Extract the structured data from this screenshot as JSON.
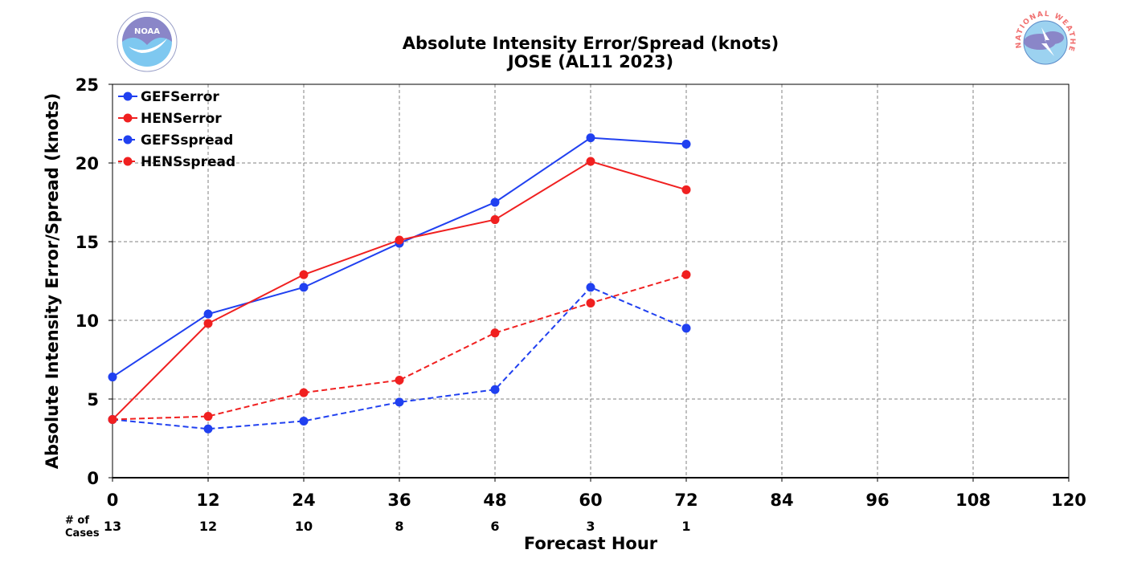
{
  "chart_data": {
    "type": "line",
    "title": "Absolute Intensity Error/Spread (knots)",
    "subtitle": "JOSE (AL11 2023)",
    "xlabel": "Forecast Hour",
    "ylabel": "Absolute Intensity Error/Spread (knots)",
    "xlim": [
      0,
      120
    ],
    "ylim": [
      0,
      25
    ],
    "x_ticks": [
      0,
      12,
      24,
      36,
      48,
      60,
      72,
      84,
      96,
      108,
      120
    ],
    "y_ticks": [
      0,
      5,
      10,
      15,
      20,
      25
    ],
    "grid": true,
    "legend_position": "top-left",
    "cases_label": [
      "# of",
      "Cases"
    ],
    "cases": [
      {
        "x": 0,
        "n": "13"
      },
      {
        "x": 12,
        "n": "12"
      },
      {
        "x": 24,
        "n": "10"
      },
      {
        "x": 36,
        "n": "8"
      },
      {
        "x": 48,
        "n": "6"
      },
      {
        "x": 60,
        "n": "3"
      },
      {
        "x": 72,
        "n": "1"
      }
    ],
    "x": [
      0,
      12,
      24,
      36,
      48,
      60,
      72
    ],
    "series": [
      {
        "name": "GEFSerror",
        "color": "#2040f0",
        "dash": false,
        "values": [
          6.4,
          10.4,
          12.1,
          14.9,
          17.5,
          21.6,
          21.2
        ]
      },
      {
        "name": "HENSerror",
        "color": "#f02020",
        "dash": false,
        "values": [
          3.7,
          9.8,
          12.9,
          15.1,
          16.4,
          20.1,
          18.3
        ]
      },
      {
        "name": "GEFSspread",
        "color": "#2040f0",
        "dash": true,
        "values": [
          3.7,
          3.1,
          3.6,
          4.8,
          5.6,
          12.1,
          9.5
        ]
      },
      {
        "name": "HENSspread",
        "color": "#f02020",
        "dash": true,
        "values": [
          3.7,
          3.9,
          5.4,
          6.2,
          9.2,
          11.1,
          12.9
        ]
      }
    ]
  },
  "logos": {
    "noaa": {
      "text": "NOAA",
      "name": "noaa-logo"
    },
    "nws": {
      "text": "NATIONAL WEATHER SERVICE",
      "name": "nws-logo"
    }
  }
}
